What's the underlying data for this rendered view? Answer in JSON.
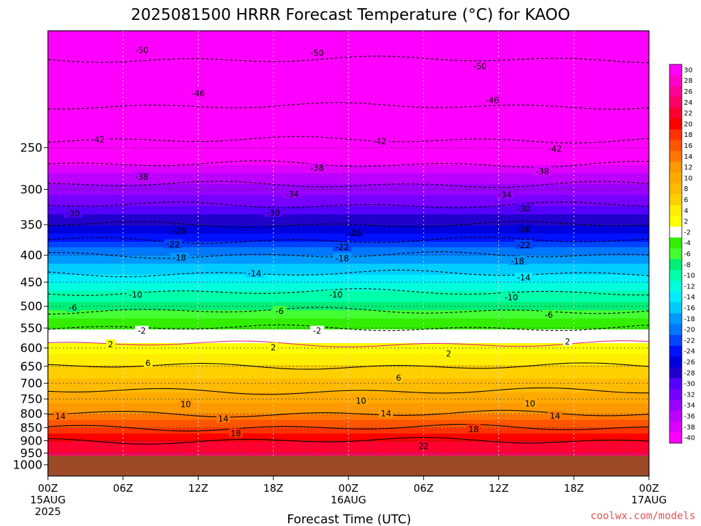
{
  "chart_data": {
    "type": "heatmap",
    "title": "2025081500 HRRR Forecast Temperature (°C) for KAOO",
    "xlabel": "Forecast Time (UTC)",
    "ylabel": "",
    "credit": "coolwx.com/models",
    "x_range_hours": [
      0,
      48
    ],
    "y_range_hpa": [
      150,
      1050
    ],
    "y_scale": "log",
    "grid": true,
    "x_ticks": [
      {
        "hour": 0,
        "label": "00Z",
        "date": "15AUG",
        "year": "2025"
      },
      {
        "hour": 6,
        "label": "06Z"
      },
      {
        "hour": 12,
        "label": "12Z"
      },
      {
        "hour": 18,
        "label": "18Z"
      },
      {
        "hour": 24,
        "label": "00Z",
        "date": "16AUG"
      },
      {
        "hour": 30,
        "label": "06Z"
      },
      {
        "hour": 36,
        "label": "12Z"
      },
      {
        "hour": 42,
        "label": "18Z"
      },
      {
        "hour": 48,
        "label": "00Z",
        "date": "17AUG"
      }
    ],
    "y_ticks": [
      "250",
      "300",
      "350",
      "400",
      "450",
      "500",
      "550",
      "600",
      "650",
      "700",
      "750",
      "800",
      "850",
      "900",
      "950",
      "1000"
    ],
    "surface_pressure_hpa": 960,
    "surface_color": "#9c4a28",
    "colorbar": {
      "ticks": [
        "30",
        "28",
        "26",
        "24",
        "22",
        "20",
        "18",
        "16",
        "14",
        "12",
        "10",
        "8",
        "6",
        "4",
        "2",
        "-2",
        "-4",
        "-6",
        "-8",
        "-10",
        "-12",
        "-14",
        "-16",
        "-18",
        "-20",
        "-22",
        "-24",
        "-26",
        "-28",
        "-30",
        "-32",
        "-34",
        "-36",
        "-38",
        "-40"
      ]
    },
    "isotherm_levels_c": [
      -50,
      -46,
      -42,
      -38,
      -34,
      -30,
      -26,
      -22,
      -18,
      -14,
      -10,
      -6,
      -2,
      2,
      6,
      10,
      14,
      18,
      22
    ],
    "temperature_profile": {
      "pressure_hpa": [
        150,
        200,
        250,
        300,
        350,
        400,
        450,
        500,
        550,
        600,
        650,
        700,
        750,
        800,
        850,
        900,
        950,
        1000
      ],
      "temp_c": [
        -52,
        -47,
        -41,
        -33,
        -26,
        -18,
        -12,
        -7,
        -2,
        3,
        6,
        9,
        11,
        14,
        18,
        22,
        24,
        26
      ]
    },
    "contour_labels": [
      {
        "value": "-50",
        "hour": 7.5,
        "p": 163
      },
      {
        "value": "-50",
        "hour": 21.5,
        "p": 165
      },
      {
        "value": "-50",
        "hour": 34.5,
        "p": 175
      },
      {
        "value": "-46",
        "hour": 12,
        "p": 197
      },
      {
        "value": "-46",
        "hour": 35.5,
        "p": 203
      },
      {
        "value": "-42",
        "hour": 4,
        "p": 241
      },
      {
        "value": "-42",
        "hour": 26.5,
        "p": 243
      },
      {
        "value": "-42",
        "hour": 40.5,
        "p": 251
      },
      {
        "value": "-38",
        "hour": 7.5,
        "p": 284
      },
      {
        "value": "-38",
        "hour": 21.5,
        "p": 273
      },
      {
        "value": "-38",
        "hour": 39.5,
        "p": 277
      },
      {
        "value": "-34",
        "hour": 19.5,
        "p": 306
      },
      {
        "value": "-34",
        "hour": 36.5,
        "p": 307
      },
      {
        "value": "-30",
        "hour": 2,
        "p": 333
      },
      {
        "value": "-30",
        "hour": 18,
        "p": 332
      },
      {
        "value": "-30",
        "hour": 38,
        "p": 326
      },
      {
        "value": "-26",
        "hour": 10.5,
        "p": 359
      },
      {
        "value": "-26",
        "hour": 24.5,
        "p": 362
      },
      {
        "value": "-26",
        "hour": 38,
        "p": 357
      },
      {
        "value": "-22",
        "hour": 10,
        "p": 381
      },
      {
        "value": "-22",
        "hour": 23.5,
        "p": 386
      },
      {
        "value": "-22",
        "hour": 38,
        "p": 382
      },
      {
        "value": "-18",
        "hour": 10.5,
        "p": 404
      },
      {
        "value": "-18",
        "hour": 23.5,
        "p": 405
      },
      {
        "value": "-18",
        "hour": 37.5,
        "p": 410
      },
      {
        "value": "-14",
        "hour": 16.5,
        "p": 433
      },
      {
        "value": "-14",
        "hour": 38,
        "p": 441
      },
      {
        "value": "-10",
        "hour": 7,
        "p": 475
      },
      {
        "value": "-10",
        "hour": 23,
        "p": 475
      },
      {
        "value": "-10",
        "hour": 37,
        "p": 481
      },
      {
        "value": "-6",
        "hour": 2,
        "p": 503
      },
      {
        "value": "-6",
        "hour": 18.5,
        "p": 510
      },
      {
        "value": "-6",
        "hour": 40,
        "p": 519
      },
      {
        "value": "-2",
        "hour": 7.5,
        "p": 556
      },
      {
        "value": "-2",
        "hour": 21.5,
        "p": 556
      },
      {
        "value": "2",
        "hour": 5,
        "p": 590
      },
      {
        "value": "2",
        "hour": 18,
        "p": 598
      },
      {
        "value": "2",
        "hour": 32,
        "p": 614
      },
      {
        "value": "2",
        "hour": 41.5,
        "p": 583
      },
      {
        "value": "6",
        "hour": 8,
        "p": 641
      },
      {
        "value": "6",
        "hour": 28,
        "p": 683
      },
      {
        "value": "10",
        "hour": 11,
        "p": 767
      },
      {
        "value": "10",
        "hour": 25,
        "p": 755
      },
      {
        "value": "10",
        "hour": 38.5,
        "p": 764
      },
      {
        "value": "14",
        "hour": 1,
        "p": 808
      },
      {
        "value": "14",
        "hour": 14,
        "p": 817
      },
      {
        "value": "14",
        "hour": 27,
        "p": 799
      },
      {
        "value": "14",
        "hour": 40.5,
        "p": 807
      },
      {
        "value": "18",
        "hour": 15,
        "p": 871
      },
      {
        "value": "18",
        "hour": 34,
        "p": 855
      },
      {
        "value": "22",
        "hour": 30,
        "p": 920
      }
    ]
  }
}
